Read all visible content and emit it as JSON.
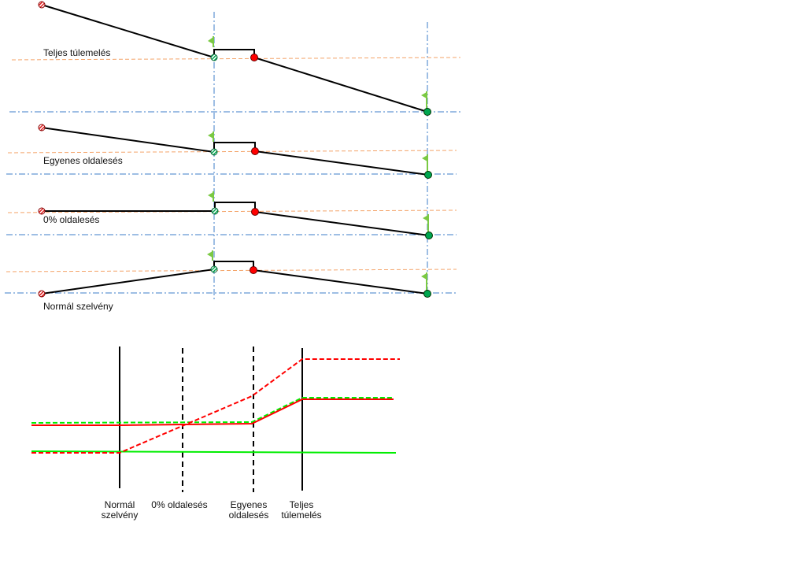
{
  "cross_sections": [
    {
      "label": "Teljes túlemelés"
    },
    {
      "label": "Egyenes oldalesés"
    },
    {
      "label": "0% oldalesés"
    },
    {
      "label": "Normál szelvény"
    }
  ],
  "transition_diagram": {
    "stations": [
      {
        "line1": "Normál",
        "line2": "szelvény",
        "style": "solid"
      },
      {
        "line1": "0% oldalesés",
        "line2": "",
        "style": "dashed"
      },
      {
        "line1": "Egyenes",
        "line2": "oldalesés",
        "style": "dashed"
      },
      {
        "line1": "Teljes",
        "line2": "túlemelés",
        "style": "solid"
      }
    ]
  },
  "colors": {
    "red": "#ff0000",
    "green": "#00ee00",
    "axis_blue": "#3d7cc9",
    "guide_orange": "#f4a46a",
    "flag_green": "#7ac943",
    "point_green": "#00a650"
  },
  "icons": [
    "flag-icon",
    "hatched-point-icon",
    "red-point-icon",
    "green-point-icon"
  ]
}
